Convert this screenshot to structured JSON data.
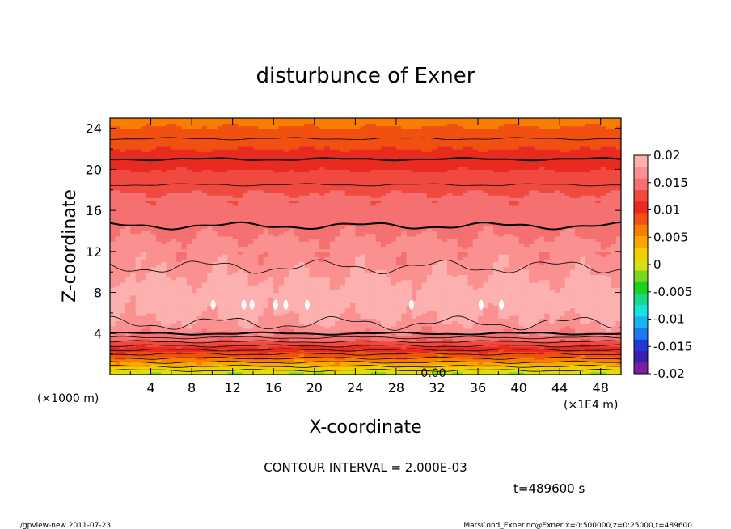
{
  "chart_data": {
    "type": "heatmap",
    "title": "disturbunce of Exner",
    "xlabel": "X-coordinate",
    "ylabel": "Z-coordinate",
    "x_unit_left": "(×1000 m)",
    "x_unit_right": "(×1E4 m)",
    "xlim": [
      0,
      50
    ],
    "ylim": [
      0,
      25
    ],
    "x_ticks": [
      4,
      8,
      12,
      16,
      20,
      24,
      28,
      32,
      36,
      40,
      44,
      48
    ],
    "y_ticks": [
      4,
      8,
      12,
      16,
      20,
      24
    ],
    "colorbar": {
      "min": -0.02,
      "max": 0.02,
      "tick_labels": [
        "0.02",
        "0.015",
        "0.01",
        "0.005",
        "0",
        "-0.005",
        "-0.01",
        "-0.015",
        "-0.02"
      ],
      "tick_values": [
        0.02,
        0.015,
        0.01,
        0.005,
        0,
        -0.005,
        -0.01,
        -0.015,
        -0.02
      ],
      "colors_low_to_high": [
        "#7a1fa0",
        "#3a1fb0",
        "#1f3ad6",
        "#1f78f0",
        "#18b4f0",
        "#18e0e0",
        "#18d88c",
        "#20d020",
        "#7ad81c",
        "#d8e010",
        "#f0d000",
        "#f8a800",
        "#f87e00",
        "#f05010",
        "#e82a20",
        "#f04a40",
        "#f57070",
        "#fa9090",
        "#fcb0b0"
      ]
    },
    "vertical_profile": {
      "z": [
        0,
        0.5,
        1,
        1.5,
        2,
        2.5,
        3,
        3.5,
        4,
        5,
        6,
        7,
        8,
        9,
        10,
        11,
        12,
        13,
        14,
        15,
        16,
        17,
        18,
        19,
        20,
        21,
        22,
        23,
        24,
        25
      ],
      "value": [
        -0.0015,
        0.0015,
        0.004,
        0.0065,
        0.0085,
        0.0105,
        0.0125,
        0.0145,
        0.016,
        0.0175,
        0.0185,
        0.0192,
        0.0192,
        0.0185,
        0.0175,
        0.017,
        0.0165,
        0.016,
        0.0155,
        0.015,
        0.0145,
        0.014,
        0.0135,
        0.0125,
        0.0115,
        0.0105,
        0.0095,
        0.0085,
        0.0075,
        0.0068
      ]
    },
    "contour_interval_label": "CONTOUR INTERVAL = 2.000E-03",
    "contour_zero_label": "0.00",
    "time_label": "t=489600 s"
  },
  "footer": {
    "left": "./gpview-new   2011-07-23",
    "right": "MarsCond_Exner.nc@Exner,x=0:500000,z=0:25000,t=489600"
  }
}
